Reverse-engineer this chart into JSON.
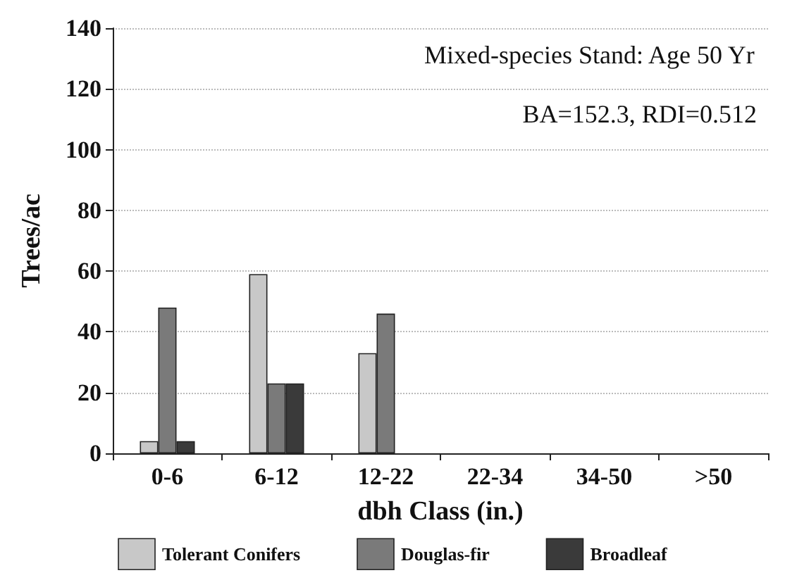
{
  "chart_data": {
    "type": "bar",
    "xlabel": "dbh Class (in.)",
    "ylabel": "Trees/ac",
    "categories": [
      "0-6",
      "6-12",
      "12-22",
      "22-34",
      "34-50",
      ">50"
    ],
    "series": [
      {
        "name": "Tolerant Conifers",
        "color": "#c8c8c8",
        "values": [
          4,
          59,
          33,
          null,
          null,
          null
        ]
      },
      {
        "name": "Douglas-fir",
        "color": "#7a7a7a",
        "values": [
          48,
          23,
          46,
          null,
          null,
          null
        ]
      },
      {
        "name": "Broadleaf",
        "color": "#3a3a3a",
        "values": [
          4,
          23,
          null,
          null,
          null,
          null
        ]
      }
    ],
    "annotations": [
      "Mixed-species Stand: Age 50 Yr",
      "BA=152.3, RDI=0.512"
    ],
    "ylim": [
      0,
      140
    ],
    "yticks": [
      0,
      20,
      40,
      60,
      80,
      100,
      120,
      140
    ],
    "grid": "y",
    "legend": "bottom"
  }
}
